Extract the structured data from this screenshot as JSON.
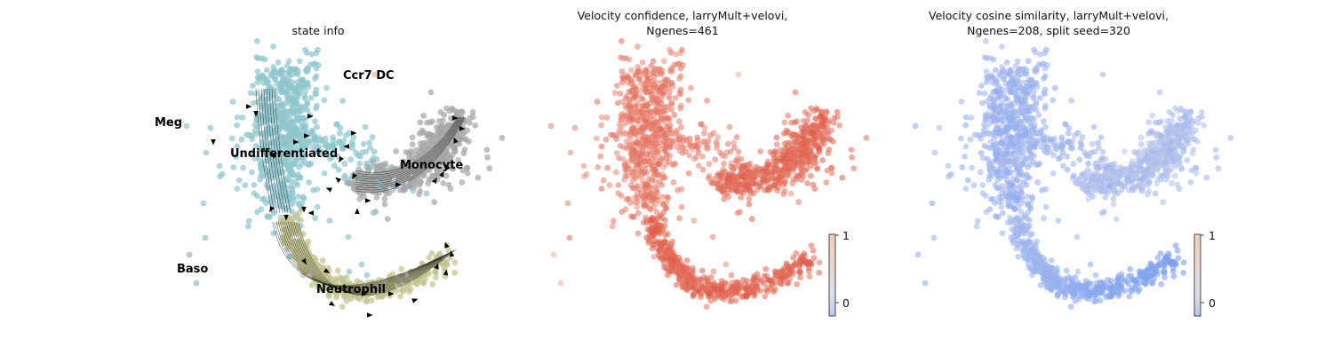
{
  "chart_data": [
    {
      "type": "scatter",
      "title": "state info",
      "xlabel": "",
      "ylabel": "",
      "legend": "on data",
      "series": [
        {
          "name": "Undifferentiated",
          "color": "#8ec6cd"
        },
        {
          "name": "Monocyte",
          "color": "#a6a6a6"
        },
        {
          "name": "Neutrophil",
          "color": "#c2c48e"
        },
        {
          "name": "Meg",
          "color": "#8ec6cd"
        },
        {
          "name": "Baso",
          "color": "#9fb3c0"
        },
        {
          "name": "Ccr7 DC",
          "color": "#f4b9a0"
        }
      ],
      "overlay": "velocity streamlines with arrowheads"
    },
    {
      "type": "scatter",
      "title": "Velocity confidence, larryMult+velovi,\nNgenes=461",
      "title_lines": [
        "Velocity confidence, larryMult+velovi,",
        "Ngenes=461"
      ],
      "colormap": "coolwarm",
      "colorbar": {
        "ticks": [
          "0",
          "1"
        ],
        "range": [
          -0.2,
          1
        ]
      },
      "value_summary": "high confidence (~0.8-1) in Monocyte and Neutrophil arms, lower in outlying cells"
    },
    {
      "type": "scatter",
      "title": "Velocity cosine similarity, larryMult+velovi,\nNgenes=208, split seed=320",
      "title_lines": [
        "Velocity cosine similarity, larryMult+velovi,",
        "Ngenes=208, split seed=320"
      ],
      "colormap": "coolwarm",
      "colorbar": {
        "ticks": [
          "0",
          "1"
        ],
        "range": [
          -0.2,
          1
        ]
      },
      "value_summary": "mostly near 0 (light blue), slightly negative along Neutrophil arm"
    }
  ],
  "panel1": {
    "title": "state info",
    "labels": {
      "meg": "Meg",
      "ccr7": "Ccr7 DC",
      "undiff": "Undifferentiated",
      "mono": "Monocyte",
      "baso": "Baso",
      "neut": "Neutrophil"
    }
  },
  "panel2": {
    "title_line1": "Velocity confidence, larryMult+velovi,",
    "title_line2": "Ngenes=461",
    "cbar_top": "1",
    "cbar_bottom": "0"
  },
  "panel3": {
    "title_line1": "Velocity cosine similarity, larryMult+velovi,",
    "title_line2": "Ngenes=208, split seed=320",
    "cbar_top": "1",
    "cbar_bottom": "0"
  }
}
